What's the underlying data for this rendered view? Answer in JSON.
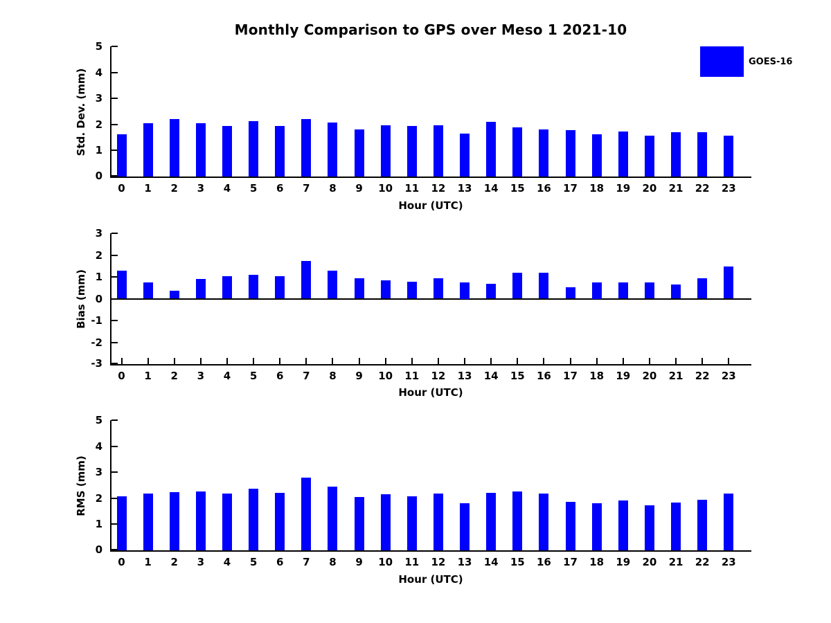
{
  "title": "Monthly Comparison to GPS over Meso 1 2021-10",
  "legend": {
    "label": "GOES-16",
    "color": "#0000ff"
  },
  "colors": {
    "bar": "#0000ff",
    "axis": "#000000",
    "background": "#ffffff"
  },
  "chart_data": [
    {
      "type": "bar",
      "ylabel": "Std. Dev. (mm)",
      "xlabel": "Hour (UTC)",
      "legend_entry": "GOES-16",
      "bar_color": "#0000ff",
      "categories": [
        "0",
        "1",
        "2",
        "3",
        "4",
        "5",
        "6",
        "7",
        "8",
        "9",
        "10",
        "11",
        "12",
        "13",
        "14",
        "15",
        "16",
        "17",
        "18",
        "19",
        "20",
        "21",
        "22",
        "23"
      ],
      "values": [
        1.61,
        2.06,
        2.22,
        2.06,
        1.93,
        2.13,
        1.93,
        2.21,
        2.08,
        1.82,
        1.97,
        1.93,
        1.97,
        1.66,
        2.1,
        1.89,
        1.82,
        1.79,
        1.63,
        1.74,
        1.56,
        1.69,
        1.69,
        1.58
      ],
      "ylim": [
        0,
        5
      ],
      "yticks": [
        "0",
        "1",
        "2",
        "3",
        "4",
        "5"
      ],
      "grid": false
    },
    {
      "type": "bar",
      "ylabel": "Bias (mm)",
      "xlabel": "Hour (UTC)",
      "legend_entry": "GOES-16",
      "bar_color": "#0000ff",
      "categories": [
        "0",
        "1",
        "2",
        "3",
        "4",
        "5",
        "6",
        "7",
        "8",
        "9",
        "10",
        "11",
        "12",
        "13",
        "14",
        "15",
        "16",
        "17",
        "18",
        "19",
        "20",
        "21",
        "22",
        "23"
      ],
      "values": [
        1.28,
        0.74,
        0.38,
        0.9,
        1.02,
        1.08,
        1.02,
        1.72,
        1.27,
        0.93,
        0.83,
        0.78,
        0.93,
        0.75,
        0.69,
        1.2,
        1.18,
        0.52,
        0.75,
        0.74,
        0.76,
        0.65,
        0.93,
        1.49
      ],
      "ylim": [
        -3,
        3
      ],
      "yticks": [
        "-3",
        "-2",
        "-1",
        "0",
        "1",
        "2",
        "3"
      ],
      "grid": false
    },
    {
      "type": "bar",
      "ylabel": "RMS (mm)",
      "xlabel": "Hour (UTC)",
      "legend_entry": "GOES-16",
      "bar_color": "#0000ff",
      "categories": [
        "0",
        "1",
        "2",
        "3",
        "4",
        "5",
        "6",
        "7",
        "8",
        "9",
        "10",
        "11",
        "12",
        "13",
        "14",
        "15",
        "16",
        "17",
        "18",
        "19",
        "20",
        "21",
        "22",
        "23"
      ],
      "values": [
        2.08,
        2.18,
        2.23,
        2.26,
        2.18,
        2.38,
        2.21,
        2.8,
        2.44,
        2.05,
        2.16,
        2.07,
        2.19,
        1.82,
        2.21,
        2.25,
        2.18,
        1.87,
        1.81,
        1.92,
        1.73,
        1.84,
        1.95,
        2.18
      ],
      "ylim": [
        0,
        5
      ],
      "yticks": [
        "0",
        "1",
        "2",
        "3",
        "4",
        "5"
      ],
      "grid": false
    }
  ]
}
